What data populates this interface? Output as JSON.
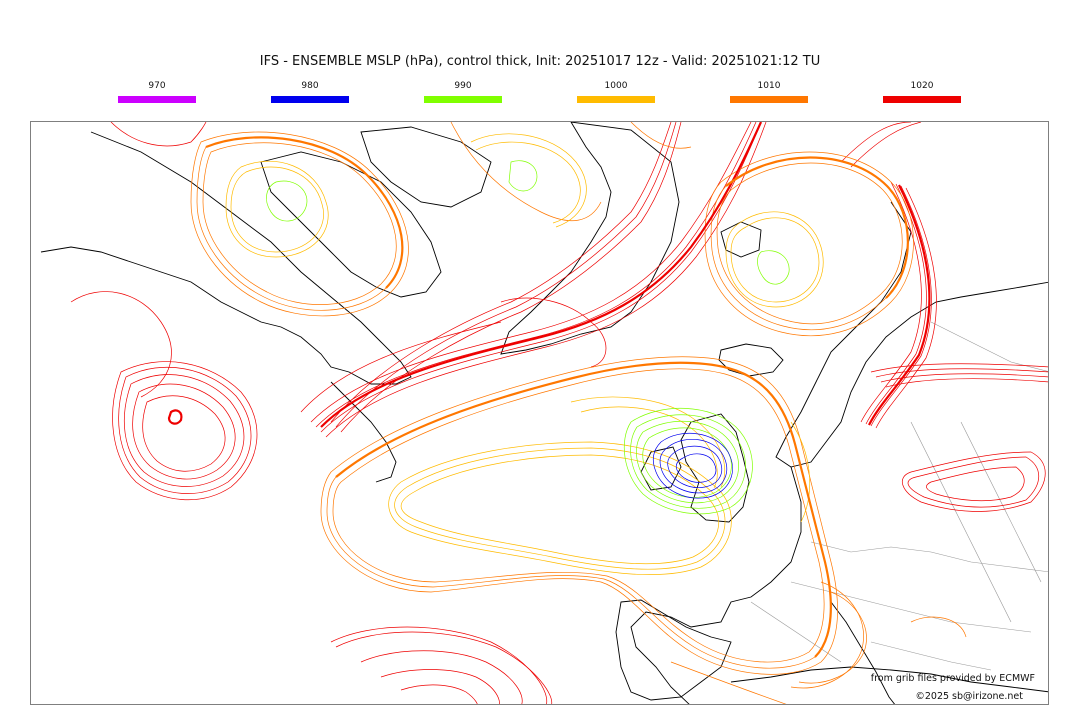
{
  "title": "IFS - ENSEMBLE MSLP (hPa), control thick, Init: 20251017 12z - Valid: 20251021:12 TU",
  "legend": [
    {
      "label": "970",
      "color": "#cc00ff"
    },
    {
      "label": "980",
      "color": "#0000ee"
    },
    {
      "label": "990",
      "color": "#80ff00"
    },
    {
      "label": "1000",
      "color": "#ffbb00"
    },
    {
      "label": "1010",
      "color": "#ff7700"
    },
    {
      "label": "1020",
      "color": "#ee0000"
    }
  ],
  "credits": {
    "source": "from grib files provided by ECMWF",
    "copyright": "©2025 sb@irizone.net"
  },
  "map": {
    "content": "North Atlantic ensemble spaghetti of isobars",
    "coastline_color": "#000000",
    "border_color": "#999999"
  }
}
